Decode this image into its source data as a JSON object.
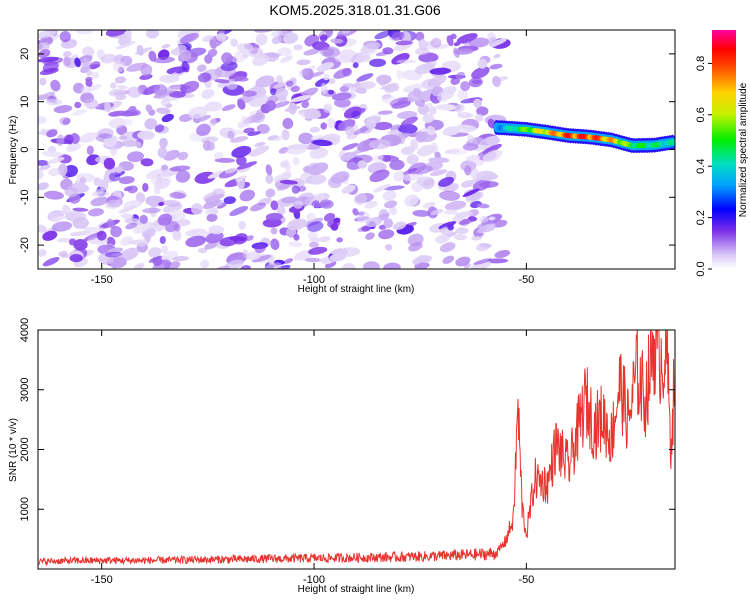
{
  "chart_data": [
    {
      "type": "heatmap",
      "title": "KOM5.2025.318.01.31.G06",
      "xlabel": "Height of straight line (km)",
      "ylabel": "Frequency (Hz)",
      "xlim": [
        -165,
        -15
      ],
      "ylim": [
        -25,
        25
      ],
      "xticks": [
        -150,
        -100,
        -50
      ],
      "yticks": [
        -20,
        -10,
        0,
        10,
        20
      ],
      "noise_region_x": [
        -165,
        -57
      ],
      "ridge": {
        "x": [
          -57,
          -55,
          -50,
          -45,
          -40,
          -35,
          -30,
          -25,
          -20,
          -15
        ],
        "y": [
          4.6,
          4.5,
          4.2,
          3.6,
          2.9,
          2.6,
          2.0,
          0.8,
          0.9,
          1.6
        ],
        "amplitude": [
          0.35,
          0.4,
          0.6,
          0.75,
          0.88,
          0.9,
          0.78,
          0.55,
          0.5,
          0.45
        ]
      },
      "colorbar": {
        "label": "Normalized spectral amplitude",
        "ticks": [
          0.0,
          0.2,
          0.4,
          0.6,
          0.8
        ],
        "range": [
          0,
          0.93
        ]
      }
    },
    {
      "type": "line",
      "xlabel": "Height of straight line (km)",
      "ylabel": "SNR (10 * v/v)",
      "xlim": [
        -165,
        -15
      ],
      "ylim": [
        0,
        4000
      ],
      "xticks": [
        -150,
        -100,
        -50
      ],
      "yticks": [
        1000,
        2000,
        3000,
        4000
      ],
      "color": "#e8332e",
      "series": [
        {
          "name": "SNR",
          "x": [
            -165,
            -160,
            -150,
            -140,
            -130,
            -120,
            -110,
            -100,
            -90,
            -80,
            -70,
            -60,
            -57,
            -55,
            -53,
            -52,
            -51,
            -50,
            -48,
            -45,
            -43,
            -40,
            -38,
            -36,
            -34,
            -32,
            -30,
            -28,
            -26,
            -24,
            -22,
            -20,
            -18,
            -17,
            -16,
            -15
          ],
          "y": [
            130,
            140,
            150,
            150,
            160,
            170,
            180,
            190,
            200,
            210,
            230,
            260,
            280,
            480,
            900,
            2900,
            1100,
            600,
            1600,
            1500,
            2200,
            1800,
            2400,
            3000,
            2500,
            2700,
            2300,
            3300,
            2600,
            3500,
            3000,
            4000,
            3700,
            3900,
            2200,
            3500
          ]
        }
      ]
    }
  ]
}
